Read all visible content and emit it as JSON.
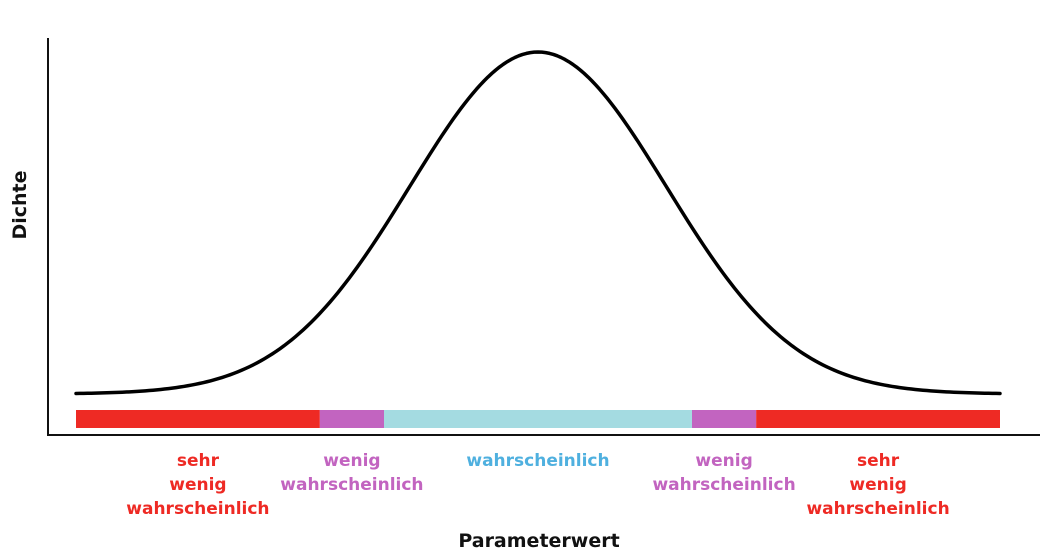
{
  "chart_data": {
    "type": "line",
    "title": "",
    "xlabel": "Parameterwert",
    "ylabel": "Dichte",
    "curve": {
      "shape": "normal",
      "mean": 0,
      "sd": 1,
      "xlim": [
        -3.6,
        3.6
      ],
      "color": "#000000"
    },
    "regions": [
      {
        "key": "very-unlikely-left",
        "from": -3.6,
        "to": -1.7,
        "color": "#ee2a24",
        "label_lines": [
          "sehr",
          "wenig",
          "wahrscheinlich"
        ],
        "label_color": "#ee2a24"
      },
      {
        "key": "unlikely-left",
        "from": -1.7,
        "to": -1.2,
        "color": "#c264c0",
        "label_lines": [
          "wenig",
          "wahrscheinlich"
        ],
        "label_color": "#c264c0"
      },
      {
        "key": "likely",
        "from": -1.2,
        "to": 1.2,
        "color": "#a4dbe1",
        "label_lines": [
          "wahrscheinlich"
        ],
        "label_color": "#4fb0df"
      },
      {
        "key": "unlikely-right",
        "from": 1.2,
        "to": 1.7,
        "color": "#c264c0",
        "label_lines": [
          "wenig",
          "wahrscheinlich"
        ],
        "label_color": "#c264c0"
      },
      {
        "key": "very-unlikely-right",
        "from": 1.7,
        "to": 3.6,
        "color": "#ee2a24",
        "label_lines": [
          "sehr",
          "wenig",
          "wahrscheinlich"
        ],
        "label_color": "#ee2a24"
      }
    ]
  }
}
